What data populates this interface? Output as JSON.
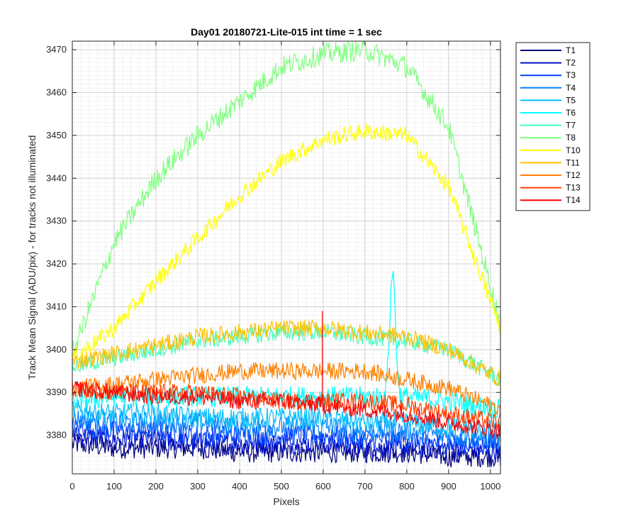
{
  "chart_data": {
    "type": "line",
    "title": "Day01 20180721-Lite-015 int time = 1 sec",
    "xlabel": "Pixels",
    "ylabel": "Track Mean Signal (ADU/pix) - for tracks not illuminated",
    "xlim": [
      0,
      1024
    ],
    "ylim": [
      3371,
      3472
    ],
    "xticks": [
      0,
      100,
      200,
      300,
      400,
      500,
      600,
      700,
      800,
      900,
      1000
    ],
    "yticks": [
      3380,
      3390,
      3400,
      3410,
      3420,
      3430,
      3440,
      3450,
      3460,
      3470
    ],
    "grid": "major and minor",
    "legend_position": "outside-right",
    "sample_x": [
      0,
      100,
      200,
      300,
      400,
      500,
      600,
      700,
      800,
      900,
      1024
    ],
    "series": [
      {
        "name": "T1",
        "color": "#000080",
        "values": [
          3378,
          3377,
          3377,
          3377,
          3376,
          3376,
          3376,
          3376,
          3376,
          3375,
          3375
        ],
        "noise": 2.5
      },
      {
        "name": "T2",
        "color": "#0010c8",
        "values": [
          3380,
          3379,
          3379,
          3378,
          3378,
          3378,
          3378,
          3377,
          3377,
          3377,
          3376
        ],
        "noise": 2.5
      },
      {
        "name": "T3",
        "color": "#0040ff",
        "values": [
          3382,
          3381,
          3381,
          3380,
          3380,
          3380,
          3380,
          3379,
          3379,
          3378,
          3378
        ],
        "noise": 2.5
      },
      {
        "name": "T4",
        "color": "#0080ff",
        "values": [
          3384,
          3383,
          3383,
          3383,
          3382,
          3382,
          3382,
          3381,
          3381,
          3380,
          3379
        ],
        "noise": 2.5
      },
      {
        "name": "T5",
        "color": "#00c0ff",
        "values": [
          3386,
          3385,
          3385,
          3384,
          3384,
          3384,
          3384,
          3383,
          3383,
          3382,
          3381
        ],
        "noise": 2.5
      },
      {
        "name": "T6",
        "color": "#00ffff",
        "values": [
          3388,
          3389,
          3389,
          3389,
          3389,
          3389,
          3389,
          3389,
          3389,
          3388,
          3386
        ],
        "noise": 2.5
      },
      {
        "name": "T7",
        "color": "#40ffc0",
        "values": [
          3396,
          3398,
          3400,
          3402,
          3403,
          3404,
          3404,
          3403,
          3402,
          3400,
          3393
        ],
        "noise": 2.0
      },
      {
        "name": "T8",
        "color": "#80ff80",
        "values": [
          3399,
          3425,
          3440,
          3450,
          3458,
          3466,
          3469,
          3470,
          3466,
          3452,
          3406
        ],
        "noise": 2.5
      },
      {
        "name": "T10",
        "color": "#ffff00",
        "values": [
          3398,
          3405,
          3416,
          3426,
          3436,
          3444,
          3449,
          3451,
          3450,
          3438,
          3405
        ],
        "noise": 2.0
      },
      {
        "name": "T11",
        "color": "#ffc000",
        "values": [
          3397,
          3399,
          3401,
          3403,
          3404,
          3405,
          3405,
          3404,
          3403,
          3400,
          3393
        ],
        "noise": 2.0
      },
      {
        "name": "T12",
        "color": "#ff8000",
        "values": [
          3391,
          3392,
          3393,
          3394,
          3395,
          3395,
          3395,
          3395,
          3393,
          3391,
          3386
        ],
        "noise": 2.0
      },
      {
        "name": "T13",
        "color": "#ff4000",
        "values": [
          3391,
          3390,
          3390,
          3390,
          3389,
          3388,
          3388,
          3388,
          3387,
          3385,
          3383
        ],
        "noise": 2.0
      },
      {
        "name": "T14",
        "color": "#ff0000",
        "values": [
          3391,
          3390,
          3389,
          3389,
          3388,
          3388,
          3387,
          3386,
          3385,
          3383,
          3381
        ],
        "noise": 2.0
      }
    ],
    "annotations": [
      {
        "series": "T6",
        "type": "peak",
        "x": 766,
        "y": 3418
      },
      {
        "series": "T14",
        "type": "spike",
        "x": 598,
        "y": 3409
      }
    ]
  }
}
